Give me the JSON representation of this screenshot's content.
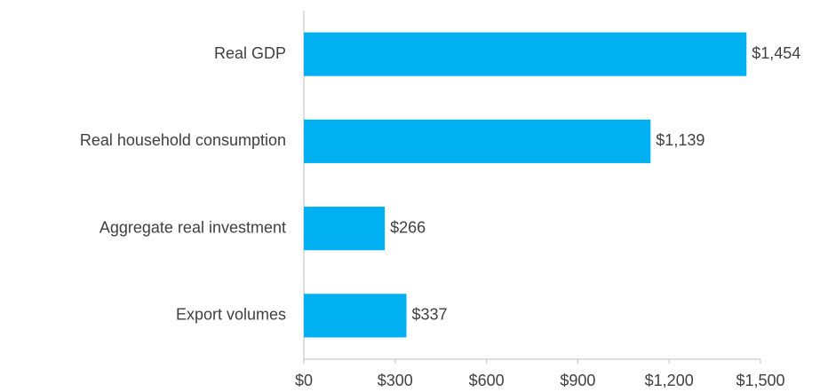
{
  "chart_data": {
    "type": "bar",
    "orientation": "horizontal",
    "categories": [
      "Real GDP",
      "Real household consumption",
      "Aggregate real investment",
      "Export volumes"
    ],
    "values": [
      1454,
      1139,
      266,
      337
    ],
    "value_labels": [
      "$1,454",
      "$1,139",
      "$266",
      "$337"
    ],
    "color": "#00b0f0",
    "xlim": [
      0,
      1500
    ],
    "xticks": [
      {
        "value": 0,
        "label": "$0"
      },
      {
        "value": 300,
        "label": "$300"
      },
      {
        "value": 600,
        "label": "$600"
      },
      {
        "value": 900,
        "label": "$900"
      },
      {
        "value": 1200,
        "label": "$1,200"
      },
      {
        "value": 1500,
        "label": "$1,500"
      }
    ],
    "grid": false
  }
}
